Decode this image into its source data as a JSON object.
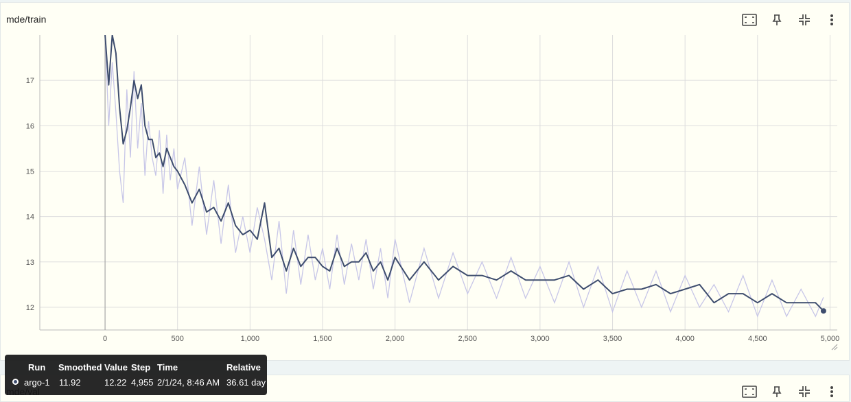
{
  "panel_top": {
    "title": "mde/train",
    "actions": [
      "fullscreen-icon",
      "pin-icon",
      "fit-icon",
      "more-vert-icon"
    ]
  },
  "panel_bottom": {
    "title": "mde/val",
    "actions": [
      "fullscreen-icon",
      "pin-icon",
      "fit-icon",
      "more-vert-icon"
    ]
  },
  "tooltip": {
    "headers": {
      "run": "Run",
      "smoothed": "Smoothed",
      "value": "Value",
      "step": "Step",
      "time": "Time",
      "relative": "Relative"
    },
    "row": {
      "run": "argo-1",
      "smoothed": "11.92",
      "value": "12.22",
      "step": "4,955",
      "time": "2/1/24, 8:46 AM",
      "relative": "36.61 day"
    }
  },
  "colors": {
    "smoothed": "#3e4d6e",
    "raw": "#c7c6e8",
    "grid": "#dddddd"
  },
  "chart_data": {
    "type": "line",
    "title": "mde/train",
    "xlim": [
      -450,
      5050
    ],
    "ylim": [
      11.5,
      18.0
    ],
    "x_ticks": [
      0,
      500,
      1000,
      1500,
      2000,
      2500,
      3000,
      3500,
      4000,
      4500,
      5000
    ],
    "x_tick_labels": [
      "0",
      "500",
      "1,000",
      "1,500",
      "2,000",
      "2,500",
      "3,000",
      "3,500",
      "4,000",
      "4,500",
      "5,000"
    ],
    "y_ticks": [
      12,
      13,
      14,
      15,
      16,
      17
    ],
    "y_tick_labels": [
      "12",
      "13",
      "14",
      "15",
      "16",
      "17"
    ],
    "grid": true,
    "series": [
      {
        "name": "argo-1",
        "x": [
          0,
          25,
          50,
          75,
          100,
          125,
          150,
          175,
          200,
          225,
          250,
          275,
          300,
          325,
          350,
          375,
          400,
          425,
          450,
          475,
          500,
          550,
          600,
          650,
          700,
          750,
          800,
          850,
          900,
          950,
          1000,
          1050,
          1100,
          1150,
          1200,
          1250,
          1300,
          1350,
          1400,
          1450,
          1500,
          1550,
          1600,
          1650,
          1700,
          1750,
          1800,
          1850,
          1900,
          1950,
          2000,
          2100,
          2200,
          2300,
          2400,
          2500,
          2600,
          2700,
          2800,
          2900,
          3000,
          3100,
          3200,
          3300,
          3400,
          3500,
          3600,
          3700,
          3800,
          3900,
          4000,
          4100,
          4200,
          4300,
          4400,
          4500,
          4600,
          4700,
          4800,
          4900,
          4955
        ],
        "smoothed": [
          18.0,
          16.9,
          18.0,
          17.6,
          16.4,
          15.6,
          15.9,
          16.4,
          17.0,
          16.6,
          16.9,
          16.0,
          15.7,
          15.7,
          15.3,
          15.4,
          15.1,
          15.5,
          15.3,
          15.1,
          15.0,
          14.7,
          14.3,
          14.6,
          14.1,
          14.2,
          13.9,
          14.3,
          13.8,
          13.6,
          13.7,
          13.5,
          14.3,
          13.1,
          13.3,
          12.8,
          13.3,
          12.9,
          13.1,
          13.1,
          12.9,
          12.8,
          13.3,
          12.9,
          13.0,
          13.0,
          13.2,
          12.8,
          13.0,
          12.6,
          13.1,
          12.6,
          13.0,
          12.6,
          12.9,
          12.7,
          12.7,
          12.6,
          12.8,
          12.6,
          12.6,
          12.6,
          12.7,
          12.4,
          12.6,
          12.3,
          12.4,
          12.4,
          12.5,
          12.3,
          12.4,
          12.5,
          12.1,
          12.3,
          12.3,
          12.1,
          12.3,
          12.1,
          12.1,
          12.1,
          11.92
        ],
        "raw": [
          18.0,
          16.0,
          17.4,
          16.3,
          15.0,
          14.3,
          16.8,
          15.3,
          17.2,
          15.5,
          16.5,
          14.9,
          16.1,
          15.3,
          14.9,
          15.9,
          14.5,
          15.8,
          14.8,
          15.5,
          14.6,
          15.3,
          13.8,
          15.1,
          13.6,
          14.8,
          13.4,
          14.7,
          13.2,
          14.0,
          13.2,
          14.2,
          13.5,
          12.6,
          13.9,
          12.3,
          13.7,
          12.5,
          13.6,
          12.6,
          13.3,
          12.4,
          13.6,
          12.5,
          13.4,
          12.6,
          13.5,
          12.4,
          13.3,
          12.2,
          13.5,
          12.1,
          13.3,
          12.2,
          13.2,
          12.3,
          13.0,
          12.2,
          13.1,
          12.2,
          12.9,
          12.1,
          13.0,
          12.0,
          12.9,
          11.9,
          12.8,
          12.0,
          12.8,
          11.9,
          12.7,
          12.0,
          12.5,
          11.9,
          12.7,
          11.8,
          12.6,
          11.8,
          12.4,
          11.8,
          12.22
        ]
      }
    ]
  }
}
